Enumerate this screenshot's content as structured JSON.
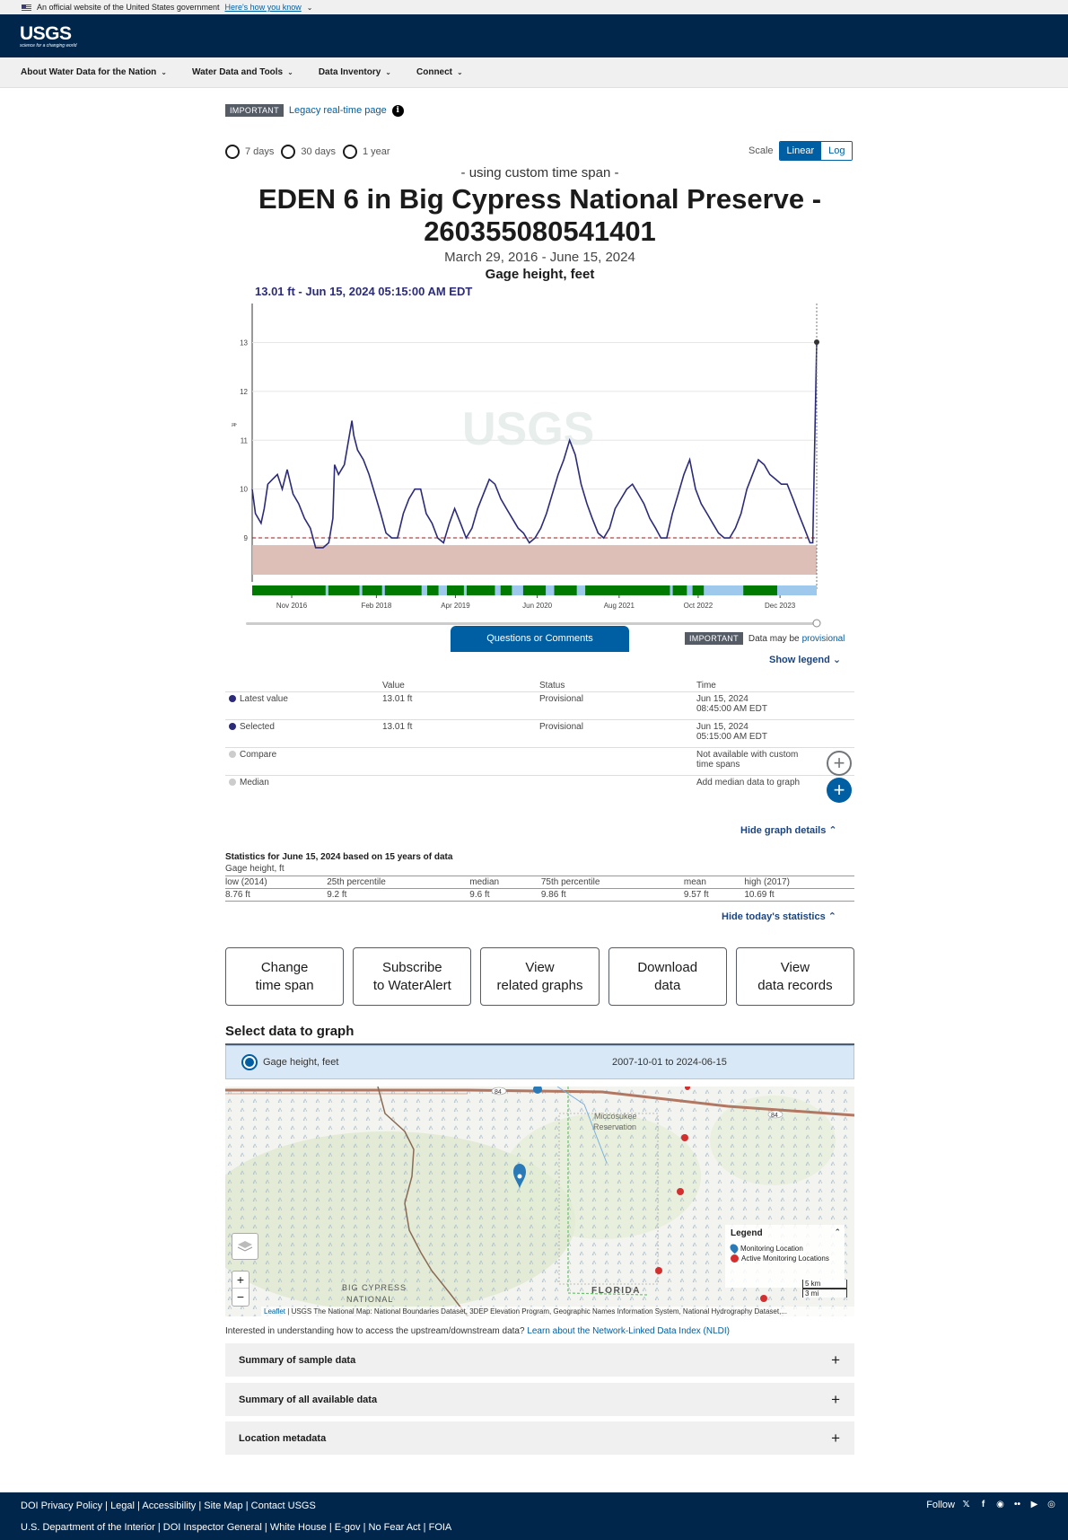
{
  "gov_banner": {
    "text": "An official website of the United States government",
    "link": "Here's how you know"
  },
  "header": {
    "logo": "USGS",
    "tagline": "science for a changing world"
  },
  "nav": {
    "items": [
      "About Water Data for the Nation",
      "Water Data and Tools",
      "Data Inventory",
      "Connect"
    ]
  },
  "notice": {
    "badge": "IMPORTANT",
    "link": "Legacy real-time page",
    "info_icon": "i"
  },
  "timespan": {
    "options": [
      "7 days",
      "30 days",
      "1 year"
    ]
  },
  "scale": {
    "label": "Scale",
    "options": [
      "Linear",
      "Log"
    ],
    "selected": "Linear"
  },
  "graph": {
    "mode": "- using custom time span -",
    "title": "EDEN 6 in Big Cypress National Preserve - 260355080541401",
    "date_range": "March 29, 2016 - June 15, 2024",
    "parameter": "Gage height, feet",
    "tooltip": "13.01 ft - Jun 15, 2024 05:15:00 AM EDT"
  },
  "chart_data": {
    "type": "line",
    "series": [
      {
        "x": [
          "2016-03-29",
          "2016-04-15",
          "2016-05-15",
          "2016-06-01",
          "2016-06-20",
          "2016-07-15",
          "2016-08-10",
          "2016-09-05",
          "2016-10-01",
          "2016-11-01",
          "2016-12-01",
          "2017-01-01",
          "2017-02-01",
          "2017-03-01",
          "2017-04-10",
          "2017-05-10",
          "2017-06-01",
          "2017-06-10",
          "2017-07-01",
          "2017-08-01",
          "2017-09-10",
          "2017-09-20",
          "2017-10-10",
          "2017-11-10",
          "2017-12-10",
          "2018-01-10",
          "2018-02-10",
          "2018-03-10",
          "2018-04-10",
          "2018-05-10",
          "2018-06-10",
          "2018-07-10",
          "2018-08-10",
          "2018-09-10",
          "2018-10-10",
          "2018-11-10",
          "2018-12-10",
          "2019-01-10",
          "2019-02-10",
          "2019-03-10",
          "2019-04-10",
          "2019-05-10",
          "2019-06-10",
          "2019-07-10",
          "2019-08-10",
          "2019-09-10",
          "2019-10-10",
          "2019-11-10",
          "2019-12-10",
          "2020-01-10",
          "2020-02-10",
          "2020-03-10",
          "2020-04-10",
          "2020-05-10",
          "2020-06-10",
          "2020-07-10",
          "2020-08-10",
          "2020-09-10",
          "2020-10-10",
          "2020-11-10",
          "2020-12-10",
          "2021-01-10",
          "2021-02-10",
          "2021-03-10",
          "2021-04-10",
          "2021-05-10",
          "2021-06-10",
          "2021-07-10",
          "2021-08-10",
          "2021-09-10",
          "2021-10-10",
          "2021-11-10",
          "2021-12-10",
          "2022-01-10",
          "2022-02-10",
          "2022-03-10",
          "2022-04-10",
          "2022-05-10",
          "2022-06-10",
          "2022-07-10",
          "2022-08-10",
          "2022-09-10",
          "2022-10-10",
          "2022-11-10",
          "2022-12-10",
          "2023-01-10",
          "2023-02-10",
          "2023-03-10",
          "2023-04-10",
          "2023-05-10",
          "2023-06-10",
          "2023-07-10",
          "2023-08-10",
          "2023-09-10",
          "2023-10-10",
          "2023-11-10",
          "2023-12-10",
          "2024-01-10",
          "2024-02-10",
          "2024-03-10",
          "2024-04-10",
          "2024-05-10",
          "2024-05-25",
          "2024-06-15"
        ],
        "y": [
          10.0,
          9.5,
          9.3,
          9.6,
          10.1,
          10.2,
          10.3,
          10.0,
          10.4,
          9.9,
          9.7,
          9.4,
          9.2,
          8.8,
          8.8,
          8.9,
          9.4,
          10.5,
          10.3,
          10.5,
          11.4,
          11.1,
          10.8,
          10.6,
          10.3,
          9.9,
          9.5,
          9.1,
          9.0,
          9.0,
          9.5,
          9.8,
          10.0,
          10.0,
          9.5,
          9.3,
          9.0,
          8.9,
          9.3,
          9.6,
          9.3,
          9.0,
          9.2,
          9.6,
          9.9,
          10.2,
          10.1,
          9.8,
          9.6,
          9.4,
          9.2,
          9.1,
          8.9,
          9.0,
          9.2,
          9.5,
          9.9,
          10.3,
          10.6,
          11.0,
          10.7,
          10.1,
          9.7,
          9.4,
          9.1,
          9.0,
          9.2,
          9.6,
          9.8,
          10.0,
          10.1,
          9.9,
          9.7,
          9.4,
          9.2,
          9.0,
          9.0,
          9.5,
          9.9,
          10.3,
          10.6,
          10.0,
          9.7,
          9.5,
          9.3,
          9.1,
          9.0,
          9.0,
          9.2,
          9.5,
          10.0,
          10.3,
          10.6,
          10.5,
          10.3,
          10.2,
          10.1,
          10.1,
          9.8,
          9.5,
          9.2,
          8.9,
          8.9,
          13.01
        ]
      }
    ],
    "x_tick_labels": [
      "Nov 2016",
      "Feb 2018",
      "Apr 2019",
      "Jun 2020",
      "Aug 2021",
      "Oct 2022",
      "Dec 2023"
    ],
    "y_tick_labels": [
      "9",
      "10",
      "11",
      "12",
      "13"
    ],
    "ylabel": "ft",
    "ylim": [
      8.1,
      13.8
    ],
    "reference_line": 9.0,
    "highlight_point": {
      "x": "2024-06-15",
      "y": 13.01
    },
    "watermark": "USGS",
    "colors": {
      "line": "#2b2b7a",
      "shade": "#d9b8b0",
      "approved": "#007a00",
      "provisional": "#9ec9ec",
      "reference": "#9a1b1b"
    }
  },
  "chart_controls": {
    "questions_button": "Questions or Comments",
    "provisional_badge": "IMPORTANT",
    "provisional_text": "Data may be",
    "provisional_link": "provisional",
    "show_legend": "Show legend"
  },
  "values_table": {
    "headers": [
      "",
      "Value",
      "Status",
      "Time"
    ],
    "rows": [
      {
        "label": "Latest value",
        "value": "13.01 ft",
        "status": "Provisional",
        "time1": "Jun 15, 2024",
        "time2": "08:45:00 AM EDT"
      },
      {
        "label": "Selected",
        "value": "13.01 ft",
        "status": "Provisional",
        "time1": "Jun 15, 2024",
        "time2": "05:15:00 AM EDT"
      },
      {
        "label": "Compare",
        "value": "",
        "status": "",
        "time1": "Not available with custom",
        "time2": "time spans"
      },
      {
        "label": "Median",
        "value": "",
        "status": "",
        "time1": "Add median data to graph",
        "time2": ""
      }
    ]
  },
  "hide_graph_details": "Hide graph details",
  "statistics": {
    "title": "Statistics for June 15, 2024 based on 15 years of data",
    "subtitle": "Gage height, ft",
    "headers": [
      "low (2014)",
      "25th percentile",
      "median",
      "75th percentile",
      "mean",
      "high (2017)"
    ],
    "values": [
      "8.76 ft",
      "9.2 ft",
      "9.6 ft",
      "9.86 ft",
      "9.57 ft",
      "10.69 ft"
    ],
    "hide_label": "Hide today's statistics"
  },
  "actions": [
    "Change\ntime span",
    "Subscribe\nto WaterAlert",
    "View\nrelated graphs",
    "Download\ndata",
    "View\ndata records"
  ],
  "select_data": {
    "title": "Select data to graph",
    "option": "Gage height, feet",
    "dates": "2007-10-01 to 2024-06-15"
  },
  "map": {
    "labels": {
      "reservation": "Miccosukee\nReservation",
      "florida": "FLORIDA",
      "preserve": "BIG CYPRESS\nNATIONAL",
      "road1": "84",
      "road2": "84"
    },
    "legend_title": "Legend",
    "legend_items": [
      "Monitoring Location",
      "Active Monitoring Locations"
    ],
    "scale": [
      "5 km",
      "3 mi"
    ],
    "zoom_in": "+",
    "zoom_out": "−",
    "attribution_link": "Leaflet",
    "attribution": "| USGS The National Map: National Boundaries Dataset, 3DEP Elevation Program, Geographic Names Information System, National Hydrography Dataset,..."
  },
  "nldi": {
    "text": "Interested in understanding how to access the upstream/downstream data?",
    "link": "Learn about the Network-Linked Data Index (NLDI)"
  },
  "accordions": [
    "Summary of sample data",
    "Summary of all available data",
    "Location metadata"
  ],
  "footer": {
    "row1": [
      "DOI Privacy Policy",
      "Legal",
      "Accessibility",
      "Site Map",
      "Contact USGS"
    ],
    "row2": [
      "U.S. Department of the Interior",
      "DOI Inspector General",
      "White House",
      "E-gov",
      "No Fear Act",
      "FOIA"
    ],
    "follow": "Follow"
  }
}
